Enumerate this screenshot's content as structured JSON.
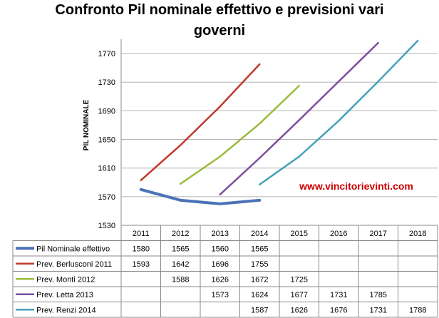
{
  "chart_data": {
    "type": "line",
    "title_lines": [
      "Confronto Pil nominale effettivo e previsioni vari",
      "governi"
    ],
    "ylabel": "PIL NOMINALE",
    "xlabel": "",
    "ylim": [
      1530,
      1790
    ],
    "yticks": [
      1530,
      1570,
      1610,
      1650,
      1690,
      1730,
      1770
    ],
    "grid": "horizontal",
    "legend": "data table below the plot",
    "x": [
      "2011",
      "2012",
      "2013",
      "2014",
      "2015",
      "2016",
      "2017",
      "2018"
    ],
    "watermark": "www.vincitorievinti.com",
    "watermark_color": "#cc0000",
    "series": [
      {
        "name": "Pil Nominale effettivo",
        "color": "#4a72b8",
        "values": [
          1580,
          1565,
          1560,
          1565,
          null,
          null,
          null,
          null
        ]
      },
      {
        "name": "Prev. Berlusconi 2011",
        "color": "#c0392b",
        "values": [
          1593,
          1642,
          1696,
          1755,
          null,
          null,
          null,
          null
        ]
      },
      {
        "name": "Prev. Monti 2012",
        "color": "#9bbb3b",
        "values": [
          null,
          1588,
          1626,
          1672,
          1725,
          null,
          null,
          null
        ]
      },
      {
        "name": "Prev. Letta 2013",
        "color": "#7d4ea0",
        "values": [
          null,
          null,
          1573,
          1624,
          1677,
          1731,
          1785,
          null
        ]
      },
      {
        "name": "Prev. Renzi 2014",
        "color": "#45a1b8",
        "values": [
          null,
          null,
          null,
          1587,
          1626,
          1676,
          1731,
          1788
        ]
      }
    ]
  }
}
